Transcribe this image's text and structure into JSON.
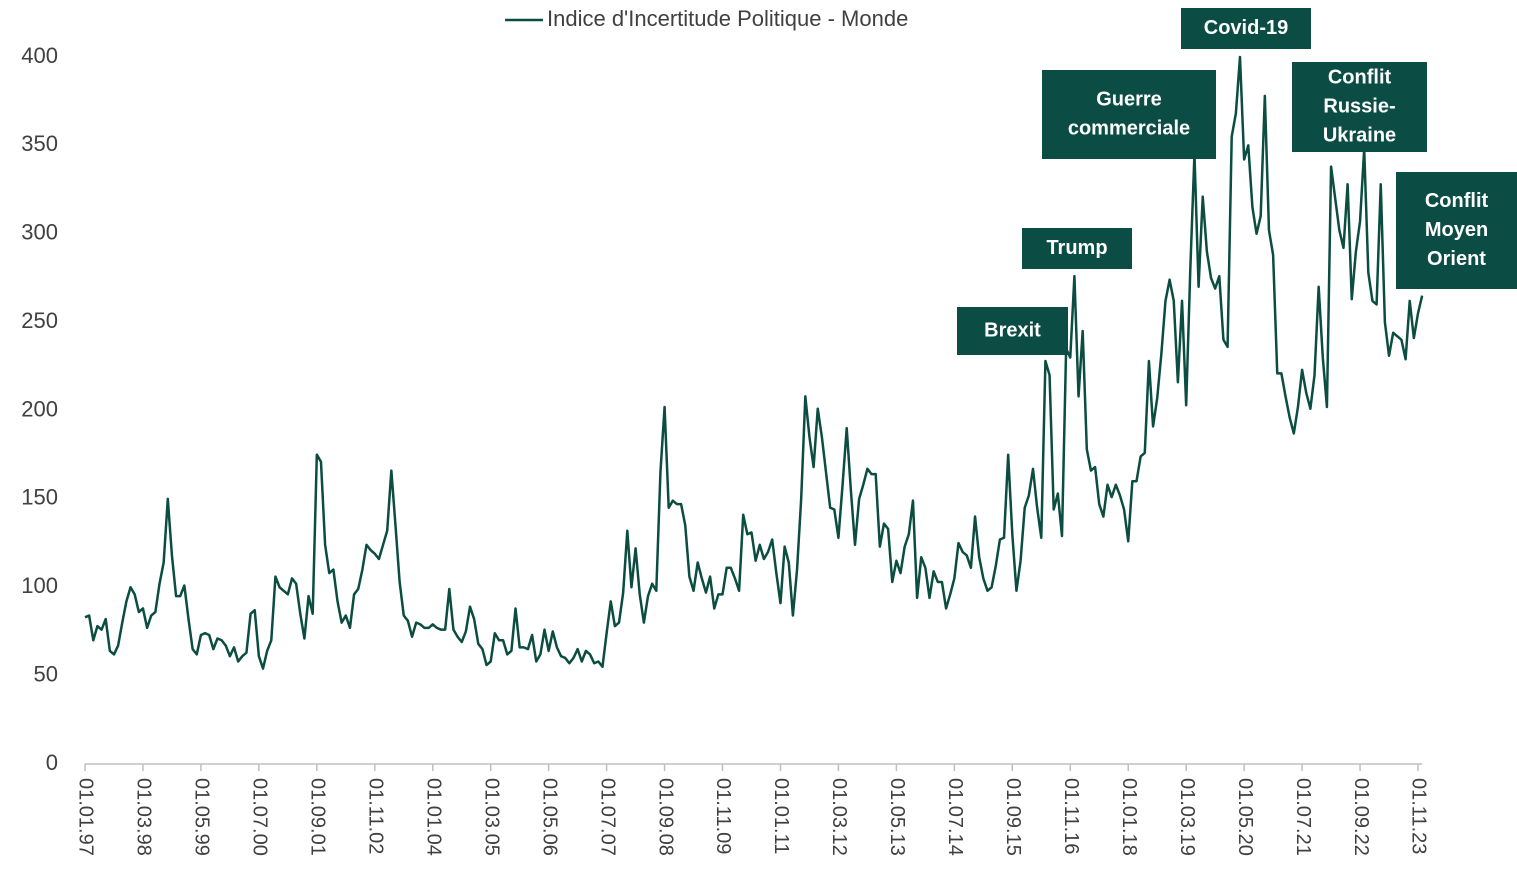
{
  "chart_data": {
    "type": "line",
    "categories": [
      "01.01.97",
      null,
      null,
      null,
      null,
      null,
      null,
      null,
      null,
      null,
      null,
      null,
      null,
      null,
      "01.03.98",
      null,
      null,
      null,
      null,
      null,
      null,
      null,
      null,
      null,
      null,
      null,
      null,
      null,
      "01.05.99",
      null,
      null,
      null,
      null,
      null,
      null,
      null,
      null,
      null,
      null,
      null,
      null,
      null,
      "01.07.00",
      null,
      null,
      null,
      null,
      null,
      null,
      null,
      null,
      null,
      null,
      null,
      null,
      null,
      "01.09.01",
      null,
      null,
      null,
      null,
      null,
      null,
      null,
      null,
      null,
      null,
      null,
      null,
      null,
      "01.11.02",
      null,
      null,
      null,
      null,
      null,
      null,
      null,
      null,
      null,
      null,
      null,
      null,
      null,
      "01.01.04",
      null,
      null,
      null,
      null,
      null,
      null,
      null,
      null,
      null,
      null,
      null,
      null,
      null,
      "01.03.05",
      null,
      null,
      null,
      null,
      null,
      null,
      null,
      null,
      null,
      null,
      null,
      null,
      null,
      "01.05.06",
      null,
      null,
      null,
      null,
      null,
      null,
      null,
      null,
      null,
      null,
      null,
      null,
      null,
      "01.07.07",
      null,
      null,
      null,
      null,
      null,
      null,
      null,
      null,
      null,
      null,
      null,
      null,
      null,
      "01.09.08",
      null,
      null,
      null,
      null,
      null,
      null,
      null,
      null,
      null,
      null,
      null,
      null,
      null,
      "01.11.09",
      null,
      null,
      null,
      null,
      null,
      null,
      null,
      null,
      null,
      null,
      null,
      null,
      null,
      "01.01.11",
      null,
      null,
      null,
      null,
      null,
      null,
      null,
      null,
      null,
      null,
      null,
      null,
      null,
      "01.03.12",
      null,
      null,
      null,
      null,
      null,
      null,
      null,
      null,
      null,
      null,
      null,
      null,
      null,
      "01.05.13",
      null,
      null,
      null,
      null,
      null,
      null,
      null,
      null,
      null,
      null,
      null,
      null,
      null,
      "01.07.14",
      null,
      null,
      null,
      null,
      null,
      null,
      null,
      null,
      null,
      null,
      null,
      null,
      null,
      "01.09.15",
      null,
      null,
      null,
      null,
      null,
      null,
      null,
      null,
      null,
      null,
      null,
      null,
      null,
      "01.11.16",
      null,
      null,
      null,
      null,
      null,
      null,
      null,
      null,
      null,
      null,
      null,
      null,
      null,
      "01.01.18",
      null,
      null,
      null,
      null,
      null,
      null,
      null,
      null,
      null,
      null,
      null,
      null,
      null,
      "01.03.19",
      null,
      null,
      null,
      null,
      null,
      null,
      null,
      null,
      null,
      null,
      null,
      null,
      null,
      "01.05.20",
      null,
      null,
      null,
      null,
      null,
      null,
      null,
      null,
      null,
      null,
      null,
      null,
      null,
      "01.07.21",
      null,
      null,
      null,
      null,
      null,
      null,
      null,
      null,
      null,
      null,
      null,
      null,
      null,
      "01.09.22",
      null,
      null,
      null,
      null,
      null,
      null,
      null,
      null,
      null,
      null,
      null,
      null,
      null,
      "01.11.23",
      null
    ],
    "series": [
      {
        "name": "Indice d'Incertitude Politique - Monde",
        "color": "#0b4d40",
        "values": [
          83,
          84,
          70,
          78,
          76,
          82,
          64,
          62,
          67,
          80,
          92,
          100,
          96,
          86,
          88,
          77,
          84,
          86,
          102,
          114,
          150,
          118,
          95,
          95,
          101,
          82,
          65,
          62,
          73,
          74,
          73,
          65,
          71,
          70,
          67,
          61,
          66,
          58,
          61,
          63,
          85,
          87,
          61,
          54,
          64,
          70,
          106,
          100,
          98,
          96,
          105,
          102,
          85,
          71,
          95,
          85,
          175,
          171,
          124,
          108,
          110,
          92,
          80,
          84,
          77,
          96,
          99,
          110,
          124,
          121,
          119,
          116,
          124,
          132,
          166,
          135,
          103,
          84,
          81,
          72,
          80,
          79,
          77,
          77,
          79,
          77,
          76,
          76,
          99,
          76,
          72,
          69,
          75,
          89,
          82,
          68,
          65,
          56,
          58,
          74,
          70,
          70,
          62,
          64,
          88,
          66,
          66,
          65,
          73,
          58,
          62,
          76,
          64,
          75,
          66,
          61,
          60,
          57,
          60,
          65,
          58,
          64,
          62,
          57,
          58,
          55,
          74,
          92,
          78,
          80,
          97,
          132,
          100,
          122,
          96,
          80,
          95,
          102,
          98,
          165,
          202,
          145,
          149,
          147,
          147,
          135,
          106,
          98,
          114,
          105,
          97,
          106,
          88,
          96,
          96,
          111,
          111,
          105,
          98,
          141,
          130,
          131,
          115,
          124,
          116,
          120,
          127,
          108,
          91,
          123,
          114,
          84,
          110,
          150,
          208,
          185,
          168,
          201,
          185,
          165,
          145,
          144,
          128,
          158,
          190,
          155,
          124,
          150,
          158,
          167,
          164,
          164,
          123,
          136,
          133,
          103,
          115,
          108,
          123,
          130,
          149,
          94,
          117,
          111,
          94,
          109,
          103,
          103,
          88,
          96,
          105,
          125,
          120,
          118,
          111,
          140,
          117,
          105,
          98,
          100,
          112,
          127,
          128,
          175,
          130,
          98,
          115,
          145,
          152,
          167,
          145,
          128,
          228,
          220,
          144,
          153,
          129,
          235,
          230,
          276,
          208,
          245,
          178,
          166,
          168,
          147,
          140,
          158,
          151,
          158,
          152,
          144,
          126,
          160,
          160,
          174,
          176,
          228,
          191,
          207,
          232,
          262,
          274,
          262,
          216,
          262,
          203,
          280,
          345,
          270,
          321,
          290,
          275,
          269,
          276,
          240,
          236,
          355,
          368,
          400,
          342,
          350,
          315,
          300,
          310,
          378,
          302,
          288,
          221,
          221,
          208,
          196,
          187,
          202,
          223,
          210,
          201,
          220,
          270,
          230,
          202,
          338,
          320,
          302,
          292,
          328,
          263,
          290,
          307,
          348,
          278,
          262,
          260,
          328,
          250,
          231,
          244,
          242,
          240,
          229,
          262,
          241,
          255,
          265
        ]
      }
    ],
    "ylim": [
      0,
      400
    ],
    "yticks": [
      0,
      50,
      100,
      150,
      200,
      250,
      300,
      350,
      400
    ],
    "grid": false,
    "legend": "top",
    "annotations": [
      {
        "lines": [
          "Brexit"
        ]
      },
      {
        "lines": [
          "Trump"
        ]
      },
      {
        "lines": [
          "Guerre",
          "commerciale"
        ]
      },
      {
        "lines": [
          "Covid-19"
        ]
      },
      {
        "lines": [
          "Conflit",
          "Russie-",
          "Ukraine"
        ]
      },
      {
        "lines": [
          "Conflit",
          "Moyen",
          "Orient"
        ]
      }
    ],
    "annotation_color": "#0b4d45"
  }
}
